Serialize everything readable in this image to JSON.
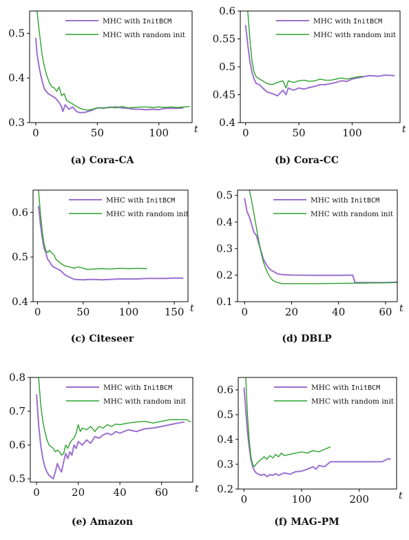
{
  "figure": {
    "panels": [
      "(a) Cora-CA",
      "(b) Cora-CC",
      "(c) Citeseer",
      "(d) DBLP",
      "(e) Amazon",
      "(f) MAG-PM"
    ]
  },
  "colors": {
    "initbcm": "#9b6fcf",
    "random": "#2ca02c"
  },
  "chart_data": [
    {
      "type": "line",
      "caption": "(a) Cora-CA",
      "xlabel": "t",
      "xlim": [
        -5,
        127
      ],
      "ylim": [
        0.3,
        0.55
      ],
      "xticks": [
        0,
        50,
        100
      ],
      "yticks": [
        0.3,
        0.4,
        0.5
      ],
      "legend_position": "top-right",
      "series": [
        {
          "name": "MHC with InitBCM",
          "color": "#9b6fcf",
          "x": [
            0,
            1,
            3,
            5,
            7,
            10,
            13,
            16,
            19,
            21,
            22,
            24,
            27,
            30,
            33,
            36,
            40,
            45,
            50,
            55,
            60,
            65,
            70,
            75,
            80,
            85,
            90,
            95,
            100,
            105,
            110,
            115,
            120
          ],
          "y": [
            0.49,
            0.455,
            0.42,
            0.395,
            0.375,
            0.365,
            0.36,
            0.355,
            0.345,
            0.335,
            0.325,
            0.34,
            0.33,
            0.335,
            0.325,
            0.322,
            0.323,
            0.327,
            0.333,
            0.333,
            0.334,
            0.335,
            0.333,
            0.332,
            0.33,
            0.33,
            0.329,
            0.33,
            0.329,
            0.332,
            0.332,
            0.332,
            0.333
          ]
        },
        {
          "name": "MHC with random init",
          "color": "#2ca02c",
          "x": [
            1,
            3,
            5,
            7,
            9,
            11,
            13,
            15,
            17,
            19,
            21,
            23,
            25,
            28,
            31,
            34,
            38,
            42,
            46,
            50,
            55,
            60,
            65,
            70,
            75,
            80,
            85,
            90,
            95,
            100,
            105,
            110,
            115,
            120,
            125
          ],
          "y": [
            0.55,
            0.5,
            0.455,
            0.425,
            0.405,
            0.39,
            0.38,
            0.378,
            0.37,
            0.38,
            0.36,
            0.365,
            0.35,
            0.345,
            0.34,
            0.335,
            0.33,
            0.328,
            0.33,
            0.333,
            0.332,
            0.335,
            0.333,
            0.336,
            0.333,
            0.334,
            0.335,
            0.335,
            0.334,
            0.335,
            0.334,
            0.335,
            0.334,
            0.335,
            0.336
          ]
        }
      ]
    },
    {
      "type": "line",
      "caption": "(b) Cora-CC",
      "xlabel": "t",
      "xlim": [
        -5,
        145
      ],
      "ylim": [
        0.4,
        0.6
      ],
      "xticks": [
        0,
        50,
        100
      ],
      "yticks": [
        0.4,
        0.45,
        0.5,
        0.55,
        0.6
      ],
      "legend_position": "top-right",
      "series": [
        {
          "name": "MHC with InitBCM",
          "color": "#9b6fcf",
          "x": [
            0,
            2,
            4,
            6,
            8,
            10,
            13,
            16,
            20,
            25,
            30,
            35,
            38,
            40,
            45,
            50,
            55,
            60,
            65,
            70,
            75,
            80,
            85,
            90,
            95,
            100,
            105,
            110,
            115,
            120,
            125,
            130,
            135,
            140
          ],
          "y": [
            0.575,
            0.54,
            0.51,
            0.49,
            0.478,
            0.47,
            0.468,
            0.462,
            0.455,
            0.452,
            0.448,
            0.458,
            0.45,
            0.462,
            0.458,
            0.462,
            0.46,
            0.463,
            0.465,
            0.468,
            0.468,
            0.47,
            0.472,
            0.475,
            0.474,
            0.478,
            0.48,
            0.482,
            0.484,
            0.484,
            0.483,
            0.485,
            0.485,
            0.484
          ]
        },
        {
          "name": "MHC with random init",
          "color": "#2ca02c",
          "x": [
            2,
            4,
            6,
            8,
            10,
            13,
            16,
            20,
            25,
            30,
            35,
            38,
            40,
            45,
            50,
            55,
            60,
            65,
            70,
            75,
            80,
            85,
            90,
            95,
            100,
            105,
            110
          ],
          "y": [
            0.6,
            0.55,
            0.51,
            0.49,
            0.482,
            0.478,
            0.475,
            0.47,
            0.468,
            0.472,
            0.475,
            0.462,
            0.475,
            0.472,
            0.475,
            0.476,
            0.474,
            0.475,
            0.478,
            0.476,
            0.476,
            0.478,
            0.48,
            0.478,
            0.48,
            0.482,
            0.483
          ]
        }
      ]
    },
    {
      "type": "line",
      "caption": "(c) Citeseer",
      "xlabel": "t",
      "xlim": [
        -5,
        165
      ],
      "ylim": [
        0.4,
        0.65
      ],
      "xticks": [
        0,
        50,
        100,
        150
      ],
      "yticks": [
        0.4,
        0.5,
        0.6
      ],
      "legend_position": "top-right",
      "series": [
        {
          "name": "MHC with InitBCM",
          "color": "#9b6fcf",
          "x": [
            1,
            3,
            5,
            7,
            9,
            11,
            13,
            16,
            20,
            25,
            30,
            35,
            40,
            50,
            60,
            70,
            80,
            90,
            100,
            110,
            120,
            130,
            140,
            150,
            160
          ],
          "y": [
            0.615,
            0.575,
            0.545,
            0.52,
            0.51,
            0.495,
            0.49,
            0.48,
            0.475,
            0.47,
            0.46,
            0.455,
            0.45,
            0.449,
            0.45,
            0.449,
            0.45,
            0.451,
            0.451,
            0.451,
            0.452,
            0.452,
            0.452,
            0.453,
            0.453
          ]
        },
        {
          "name": "MHC with random init",
          "color": "#2ca02c",
          "x": [
            1,
            3,
            5,
            7,
            9,
            11,
            13,
            15,
            18,
            20,
            23,
            26,
            30,
            35,
            40,
            45,
            50,
            55,
            60,
            70,
            80,
            90,
            100,
            110,
            120
          ],
          "y": [
            0.65,
            0.6,
            0.56,
            0.53,
            0.515,
            0.51,
            0.515,
            0.51,
            0.505,
            0.495,
            0.49,
            0.485,
            0.48,
            0.478,
            0.475,
            0.478,
            0.475,
            0.472,
            0.473,
            0.474,
            0.473,
            0.475,
            0.474,
            0.475,
            0.474
          ]
        }
      ]
    },
    {
      "type": "line",
      "caption": "(d) DBLP",
      "xlabel": "t",
      "xlim": [
        -3,
        65
      ],
      "ylim": [
        0.1,
        0.52
      ],
      "xticks": [
        0,
        20,
        40,
        60
      ],
      "yticks": [
        0.1,
        0.2,
        0.3,
        0.4,
        0.5
      ],
      "legend_position": "top-right",
      "series": [
        {
          "name": "MHC with InitBCM",
          "color": "#9b6fcf",
          "x": [
            0,
            1,
            2,
            3,
            4,
            5,
            6,
            7,
            8,
            9,
            10,
            11,
            12,
            13,
            14,
            16,
            20,
            30,
            40,
            46,
            47,
            50,
            55,
            60,
            65
          ],
          "y": [
            0.49,
            0.44,
            0.42,
            0.39,
            0.36,
            0.35,
            0.32,
            0.29,
            0.26,
            0.245,
            0.23,
            0.22,
            0.215,
            0.21,
            0.205,
            0.202,
            0.2,
            0.199,
            0.199,
            0.2,
            0.172,
            0.172,
            0.172,
            0.172,
            0.173
          ]
        },
        {
          "name": "MHC with random init",
          "color": "#2ca02c",
          "x": [
            2,
            3,
            4,
            5,
            6,
            7,
            8,
            9,
            10,
            11,
            12,
            14,
            16,
            20,
            30,
            40,
            50,
            60,
            65
          ],
          "y": [
            0.52,
            0.48,
            0.43,
            0.38,
            0.33,
            0.285,
            0.25,
            0.225,
            0.205,
            0.19,
            0.18,
            0.172,
            0.168,
            0.168,
            0.168,
            0.169,
            0.17,
            0.171,
            0.172
          ]
        }
      ]
    },
    {
      "type": "line",
      "caption": "(e) Amazon",
      "xlabel": "t",
      "xlim": [
        -3,
        75
      ],
      "ylim": [
        0.49,
        0.8
      ],
      "xticks": [
        0,
        20,
        40,
        60
      ],
      "yticks": [
        0.5,
        0.6,
        0.7,
        0.8
      ],
      "legend_position": "top-right",
      "series": [
        {
          "name": "MHC with InitBCM",
          "color": "#9b6fcf",
          "x": [
            0,
            1,
            2,
            3,
            4,
            5,
            6,
            7,
            8,
            9,
            10,
            11,
            12,
            13,
            14,
            15,
            16,
            17,
            18,
            19,
            20,
            22,
            24,
            26,
            28,
            30,
            32,
            34,
            36,
            38,
            40,
            44,
            48,
            52,
            56,
            60,
            64,
            68,
            71
          ],
          "y": [
            0.75,
            0.66,
            0.6,
            0.56,
            0.535,
            0.52,
            0.51,
            0.505,
            0.5,
            0.52,
            0.545,
            0.53,
            0.52,
            0.55,
            0.575,
            0.56,
            0.58,
            0.57,
            0.6,
            0.59,
            0.61,
            0.6,
            0.615,
            0.605,
            0.625,
            0.62,
            0.63,
            0.635,
            0.63,
            0.64,
            0.635,
            0.645,
            0.64,
            0.648,
            0.65,
            0.655,
            0.66,
            0.665,
            0.668
          ]
        },
        {
          "name": "MHC with random init",
          "color": "#2ca02c",
          "x": [
            1,
            2,
            3,
            4,
            5,
            6,
            7,
            8,
            9,
            10,
            11,
            12,
            13,
            14,
            15,
            16,
            17,
            18,
            19,
            20,
            21,
            22,
            24,
            26,
            28,
            30,
            32,
            34,
            36,
            38,
            40,
            44,
            48,
            52,
            56,
            60,
            64,
            68,
            72,
            74
          ],
          "y": [
            0.8,
            0.72,
            0.67,
            0.64,
            0.615,
            0.6,
            0.595,
            0.59,
            0.58,
            0.585,
            0.58,
            0.57,
            0.575,
            0.6,
            0.59,
            0.605,
            0.615,
            0.62,
            0.635,
            0.66,
            0.64,
            0.65,
            0.645,
            0.655,
            0.64,
            0.655,
            0.65,
            0.66,
            0.655,
            0.662,
            0.66,
            0.665,
            0.668,
            0.67,
            0.665,
            0.67,
            0.675,
            0.675,
            0.675,
            0.668
          ]
        }
      ]
    },
    {
      "type": "line",
      "caption": "(f) MAG-PM",
      "xlabel": "t",
      "xlim": [
        -10,
        265
      ],
      "ylim": [
        0.2,
        0.65
      ],
      "xticks": [
        0,
        100,
        200
      ],
      "yticks": [
        0.2,
        0.3,
        0.4,
        0.5,
        0.6
      ],
      "legend_position": "top-right",
      "series": [
        {
          "name": "MHC with InitBCM",
          "color": "#9b6fcf",
          "x": [
            0,
            3,
            6,
            9,
            12,
            15,
            18,
            21,
            25,
            30,
            35,
            40,
            45,
            50,
            55,
            60,
            70,
            80,
            90,
            100,
            110,
            120,
            125,
            130,
            140,
            150,
            160,
            180,
            200,
            220,
            240,
            250,
            255
          ],
          "y": [
            0.61,
            0.52,
            0.43,
            0.37,
            0.32,
            0.29,
            0.275,
            0.265,
            0.26,
            0.255,
            0.26,
            0.25,
            0.258,
            0.255,
            0.262,
            0.255,
            0.265,
            0.26,
            0.27,
            0.272,
            0.28,
            0.29,
            0.28,
            0.295,
            0.29,
            0.31,
            0.31,
            0.31,
            0.31,
            0.31,
            0.31,
            0.322,
            0.32
          ]
        },
        {
          "name": "MHC with random init",
          "color": "#2ca02c",
          "x": [
            3,
            6,
            9,
            12,
            15,
            18,
            21,
            25,
            30,
            35,
            40,
            45,
            50,
            55,
            60,
            65,
            70,
            80,
            90,
            100,
            110,
            120,
            130,
            140,
            150
          ],
          "y": [
            0.65,
            0.5,
            0.4,
            0.33,
            0.3,
            0.29,
            0.3,
            0.31,
            0.32,
            0.33,
            0.32,
            0.335,
            0.325,
            0.34,
            0.33,
            0.345,
            0.335,
            0.34,
            0.345,
            0.35,
            0.345,
            0.355,
            0.35,
            0.36,
            0.37
          ]
        }
      ]
    }
  ]
}
